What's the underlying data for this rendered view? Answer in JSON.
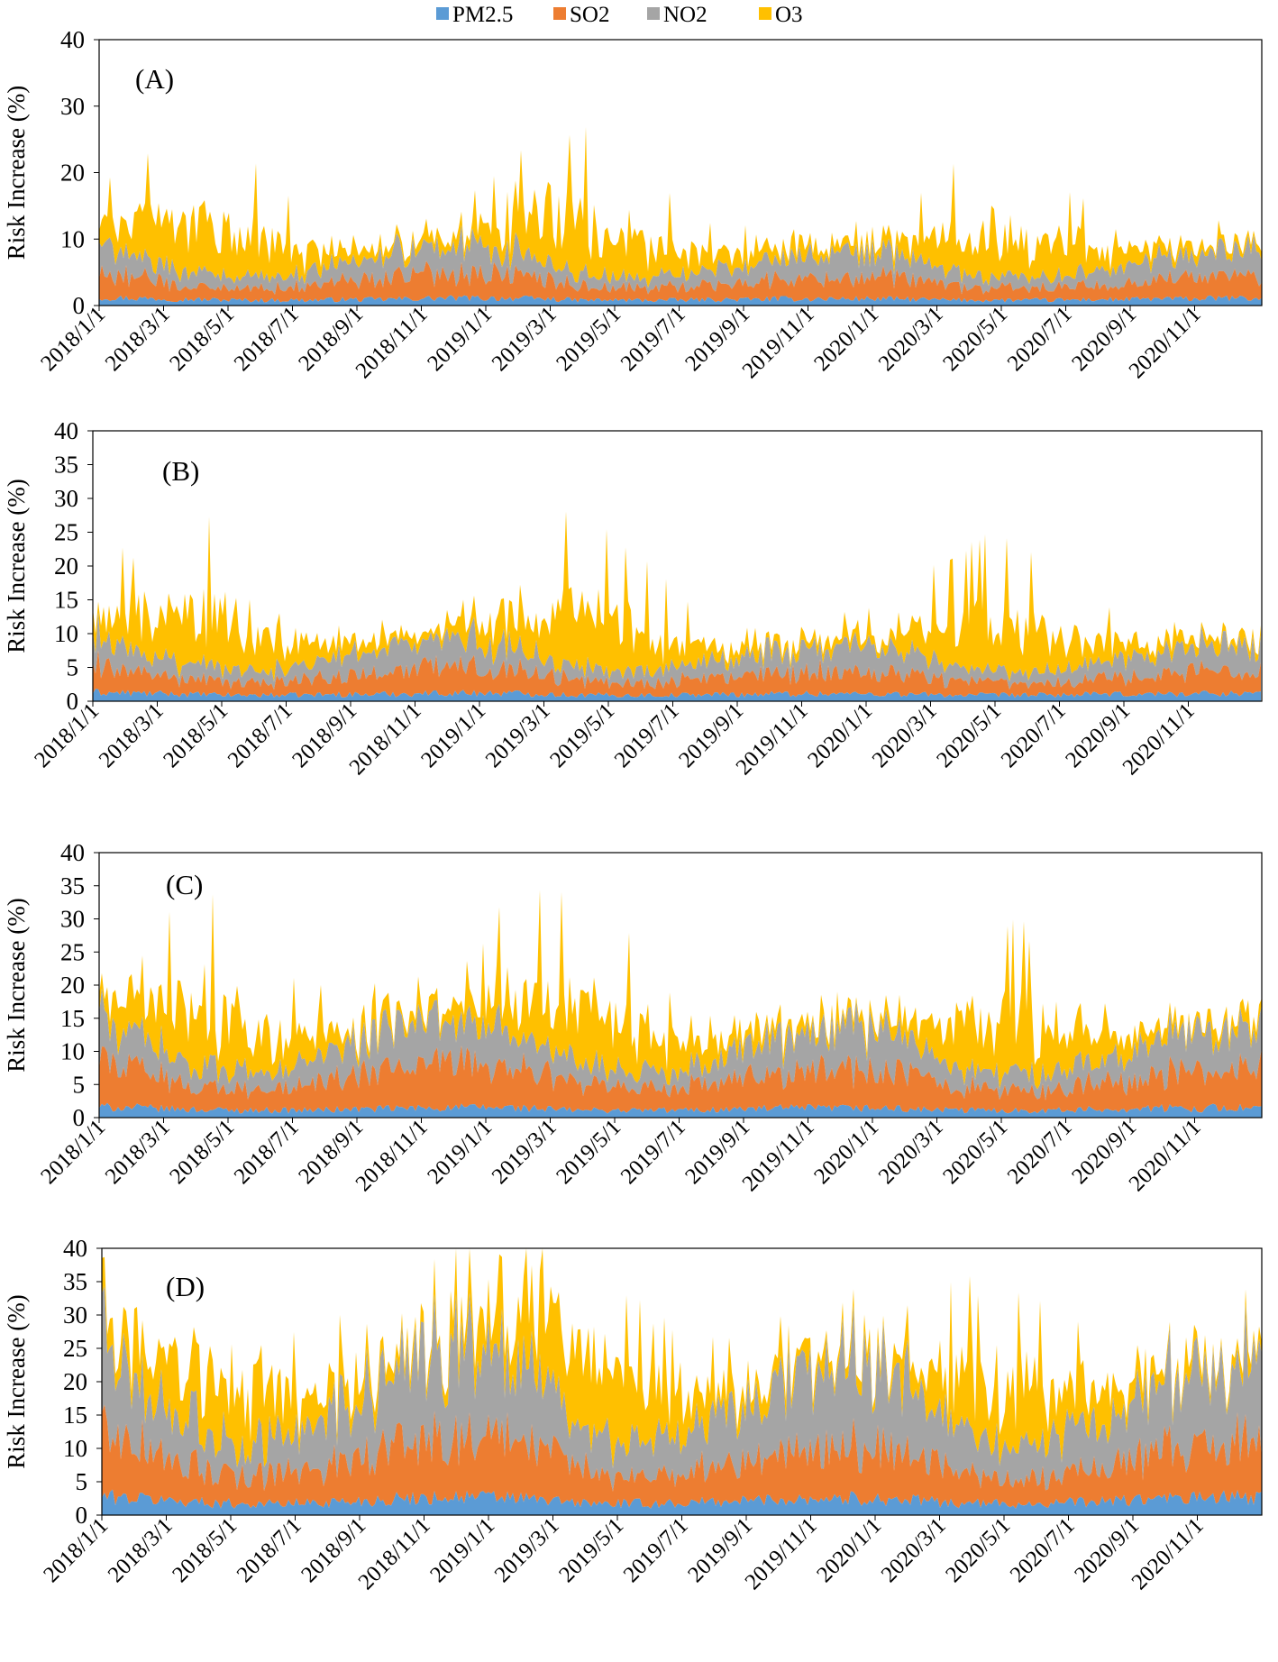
{
  "legend": [
    {
      "name": "PM2.5",
      "color": "#5B9BD5"
    },
    {
      "name": "SO2",
      "color": "#ED7D31"
    },
    {
      "name": "NO2",
      "color": "#A5A5A5"
    },
    {
      "name": "O3",
      "color": "#FFC000"
    }
  ],
  "chart_data": [
    {
      "type": "area",
      "stacked": true,
      "title": "(A)",
      "xlabel": "",
      "ylabel": "Risk Increase (%)",
      "ylim": [
        0,
        40
      ],
      "yticks": [
        0,
        10,
        20,
        30,
        40
      ],
      "x_tick_labels": [
        "2018/1/1",
        "2018/3/1",
        "2018/5/1",
        "2018/7/1",
        "2018/9/1",
        "2018/11/1",
        "2019/1/1",
        "2019/3/1",
        "2019/5/1",
        "2019/7/1",
        "2019/9/1",
        "2019/11/1",
        "2020/1/1",
        "2020/3/1",
        "2020/5/1",
        "2020/7/1",
        "2020/9/1",
        "2020/11/1"
      ],
      "series": [
        {
          "name": "PM2.5",
          "values": [
            1.2,
            1.1,
            1.0,
            0.9,
            0.8,
            0.8,
            0.8,
            0.9,
            0.9,
            1.0,
            1.1,
            1.1,
            1.1,
            1.0,
            0.8,
            0.8,
            0.8,
            0.8,
            0.9,
            0.9,
            1.0,
            1.0,
            1.0,
            1.0,
            0.9,
            0.8,
            0.8,
            0.8,
            0.8,
            0.9,
            0.9,
            1.0,
            1.0,
            1.1,
            1.0
          ]
        },
        {
          "name": "SO2",
          "values": [
            4.0,
            3.2,
            2.6,
            2.0,
            1.7,
            1.8,
            2.1,
            2.6,
            3.0,
            3.6,
            3.8,
            3.8,
            3.6,
            3.0,
            2.2,
            1.8,
            1.8,
            2.0,
            2.3,
            2.6,
            2.9,
            3.2,
            3.3,
            3.2,
            2.7,
            2.1,
            1.8,
            1.7,
            1.8,
            2.1,
            2.5,
            2.9,
            3.2,
            3.4,
            3.5
          ]
        },
        {
          "name": "NO2",
          "values": [
            4.2,
            3.2,
            2.4,
            1.9,
            1.6,
            1.6,
            2.0,
            2.6,
            3.3,
            3.9,
            4.1,
            4.0,
            3.6,
            2.7,
            2.0,
            1.6,
            1.6,
            1.8,
            2.2,
            2.7,
            3.2,
            3.6,
            3.8,
            3.6,
            2.8,
            2.0,
            1.6,
            1.6,
            1.7,
            2.1,
            2.6,
            3.1,
            3.5,
            3.7,
            3.8
          ]
        },
        {
          "name": "O3",
          "values": [
            2.6,
            4.8,
            6.6,
            7.5,
            6.8,
            5.4,
            3.6,
            2.3,
            1.6,
            1.2,
            1.3,
            2.6,
            5.0,
            7.2,
            7.6,
            7.0,
            5.6,
            3.6,
            2.4,
            1.8,
            1.5,
            1.3,
            1.2,
            1.5,
            3.2,
            5.4,
            6.8,
            6.6,
            5.3,
            3.5,
            2.2,
            1.6,
            1.2,
            1.0,
            1.0
          ]
        }
      ]
    },
    {
      "type": "area",
      "stacked": true,
      "title": "(B)",
      "xlabel": "",
      "ylabel": "Risk Increase (%)",
      "ylim": [
        0,
        40
      ],
      "yticks": [
        0,
        5,
        10,
        15,
        20,
        25,
        30,
        35,
        40
      ],
      "x_tick_labels": [
        "2018/1/1",
        "2018/3/1",
        "2018/5/1",
        "2018/7/1",
        "2018/9/1",
        "2018/11/1",
        "2019/1/1",
        "2019/3/1",
        "2019/5/1",
        "2019/7/1",
        "2019/9/1",
        "2019/11/1",
        "2020/1/1",
        "2020/3/1",
        "2020/5/1",
        "2020/7/1",
        "2020/9/1",
        "2020/11/1"
      ],
      "series": [
        {
          "name": "PM2.5",
          "values": [
            1.3,
            1.2,
            1.1,
            1.0,
            0.9,
            0.9,
            0.9,
            1.0,
            1.0,
            1.1,
            1.2,
            1.2,
            1.2,
            1.1,
            0.9,
            0.9,
            0.9,
            0.9,
            1.0,
            1.0,
            1.1,
            1.1,
            1.1,
            1.1,
            1.0,
            0.9,
            0.9,
            0.9,
            0.9,
            1.0,
            1.0,
            1.1,
            1.1,
            1.2,
            1.1
          ]
        },
        {
          "name": "SO2",
          "values": [
            4.2,
            3.3,
            2.7,
            2.1,
            1.8,
            1.9,
            2.2,
            2.7,
            3.1,
            3.7,
            3.9,
            3.9,
            3.7,
            3.1,
            2.3,
            1.9,
            1.9,
            2.1,
            2.4,
            2.7,
            3.0,
            3.3,
            3.4,
            3.3,
            2.8,
            2.2,
            1.9,
            1.8,
            1.9,
            2.2,
            2.6,
            3.0,
            3.3,
            3.5,
            3.6
          ]
        },
        {
          "name": "NO2",
          "values": [
            4.3,
            3.3,
            2.5,
            2.0,
            1.7,
            1.7,
            2.1,
            2.7,
            3.4,
            4.0,
            4.2,
            4.1,
            3.7,
            2.8,
            2.1,
            1.7,
            1.7,
            1.9,
            2.3,
            2.8,
            3.3,
            3.7,
            3.9,
            3.7,
            2.9,
            2.1,
            1.7,
            1.7,
            1.8,
            2.2,
            2.7,
            3.2,
            3.6,
            3.8,
            3.9
          ]
        },
        {
          "name": "O3",
          "values": [
            2.8,
            5.0,
            7.0,
            8.0,
            7.2,
            5.8,
            3.8,
            2.4,
            1.7,
            1.3,
            1.4,
            2.8,
            5.3,
            7.6,
            8.0,
            7.4,
            5.9,
            3.8,
            2.5,
            1.9,
            1.6,
            1.4,
            1.3,
            1.6,
            3.4,
            5.7,
            7.2,
            7.0,
            5.6,
            3.7,
            2.3,
            1.7,
            1.3,
            1.1,
            1.1
          ]
        }
      ]
    },
    {
      "type": "area",
      "stacked": true,
      "title": "(C)",
      "xlabel": "",
      "ylabel": "Risk Increase (%)",
      "ylim": [
        0,
        40
      ],
      "yticks": [
        0,
        5,
        10,
        15,
        20,
        25,
        30,
        35,
        40
      ],
      "x_tick_labels": [
        "2018/1/1",
        "2018/3/1",
        "2018/5/1",
        "2018/7/1",
        "2018/9/1",
        "2018/11/1",
        "2019/1/1",
        "2019/3/1",
        "2019/5/1",
        "2019/7/1",
        "2019/9/1",
        "2019/11/1",
        "2020/1/1",
        "2020/3/1",
        "2020/5/1",
        "2020/7/1",
        "2020/9/1",
        "2020/11/1"
      ],
      "series": [
        {
          "name": "PM2.5",
          "values": [
            1.6,
            1.5,
            1.3,
            1.2,
            1.1,
            1.1,
            1.1,
            1.2,
            1.3,
            1.4,
            1.5,
            1.5,
            1.5,
            1.3,
            1.1,
            1.1,
            1.1,
            1.1,
            1.2,
            1.3,
            1.4,
            1.4,
            1.4,
            1.4,
            1.2,
            1.1,
            1.1,
            1.1,
            1.1,
            1.2,
            1.3,
            1.4,
            1.4,
            1.5,
            1.4
          ]
        },
        {
          "name": "SO2",
          "values": [
            7.0,
            5.6,
            4.5,
            3.5,
            3.0,
            3.2,
            3.7,
            4.5,
            5.2,
            6.2,
            6.5,
            6.5,
            6.1,
            5.2,
            3.8,
            3.2,
            3.2,
            3.5,
            4.0,
            4.5,
            5.0,
            5.5,
            5.7,
            5.5,
            4.7,
            3.7,
            3.2,
            3.0,
            3.2,
            3.7,
            4.3,
            5.0,
            5.5,
            5.8,
            6.0
          ]
        },
        {
          "name": "NO2",
          "values": [
            6.5,
            5.0,
            3.8,
            3.0,
            2.6,
            2.6,
            3.2,
            4.2,
            5.2,
            6.2,
            6.5,
            6.3,
            5.6,
            4.3,
            3.2,
            2.6,
            2.6,
            2.9,
            3.5,
            4.3,
            5.1,
            5.7,
            6.0,
            5.7,
            4.5,
            3.2,
            2.6,
            2.6,
            2.8,
            3.4,
            4.2,
            5.0,
            5.5,
            5.8,
            6.0
          ]
        },
        {
          "name": "O3",
          "values": [
            3.4,
            5.8,
            8.2,
            9.2,
            8.4,
            6.6,
            4.4,
            2.8,
            2.0,
            1.5,
            1.6,
            3.2,
            6.1,
            8.8,
            9.3,
            8.5,
            6.8,
            4.4,
            2.9,
            2.2,
            1.8,
            1.6,
            1.5,
            1.8,
            3.9,
            6.6,
            8.3,
            8.0,
            6.4,
            4.2,
            2.7,
            1.9,
            1.5,
            1.3,
            1.3
          ]
        }
      ]
    },
    {
      "type": "area",
      "stacked": true,
      "title": "(D)",
      "xlabel": "",
      "ylabel": "Risk Increase (%)",
      "ylim": [
        0,
        40
      ],
      "yticks": [
        0,
        5,
        10,
        15,
        20,
        25,
        30,
        35,
        40
      ],
      "x_tick_labels": [
        "2018/1/1",
        "2018/3/1",
        "2018/5/1",
        "2018/7/1",
        "2018/9/1",
        "2018/11/1",
        "2019/1/1",
        "2019/3/1",
        "2019/5/1",
        "2019/7/1",
        "2019/9/1",
        "2019/11/1",
        "2020/1/1",
        "2020/3/1",
        "2020/5/1",
        "2020/7/1",
        "2020/9/1",
        "2020/11/1"
      ],
      "series": [
        {
          "name": "PM2.5",
          "values": [
            2.8,
            2.5,
            2.2,
            1.9,
            1.7,
            1.7,
            1.8,
            2.0,
            2.2,
            2.5,
            2.7,
            2.7,
            2.6,
            2.2,
            1.8,
            1.7,
            1.7,
            1.8,
            2.0,
            2.2,
            2.4,
            2.5,
            2.5,
            2.4,
            2.1,
            1.8,
            1.7,
            1.7,
            1.8,
            2.0,
            2.2,
            2.4,
            2.5,
            2.6,
            2.6
          ]
        },
        {
          "name": "SO2",
          "values": [
            10.0,
            8.0,
            6.2,
            4.8,
            4.0,
            4.2,
            5.0,
            6.2,
            7.4,
            8.6,
            9.2,
            9.2,
            8.6,
            7.2,
            5.2,
            4.2,
            4.2,
            4.6,
            5.4,
            6.2,
            7.0,
            7.6,
            7.9,
            7.6,
            6.4,
            5.0,
            4.2,
            4.0,
            4.2,
            5.0,
            6.0,
            7.0,
            7.6,
            8.0,
            8.4
          ]
        },
        {
          "name": "NO2",
          "values": [
            13.0,
            10.0,
            7.6,
            6.0,
            5.2,
            5.2,
            6.4,
            8.4,
            10.4,
            12.4,
            13.0,
            12.6,
            11.2,
            8.6,
            6.4,
            5.2,
            5.2,
            5.8,
            7.0,
            8.6,
            10.2,
            11.4,
            12.0,
            11.4,
            9.0,
            6.4,
            5.2,
            5.2,
            5.6,
            6.8,
            8.4,
            10.0,
            11.0,
            11.6,
            12.0
          ]
        },
        {
          "name": "O3",
          "values": [
            4.0,
            6.6,
            9.0,
            10.0,
            9.2,
            7.4,
            5.0,
            3.2,
            2.3,
            1.8,
            1.9,
            3.6,
            6.8,
            9.6,
            10.2,
            9.4,
            7.6,
            5.0,
            3.3,
            2.5,
            2.1,
            1.9,
            1.8,
            2.1,
            4.4,
            7.2,
            9.0,
            8.8,
            7.0,
            4.7,
            3.1,
            2.2,
            1.8,
            1.5,
            1.5
          ]
        }
      ]
    }
  ]
}
